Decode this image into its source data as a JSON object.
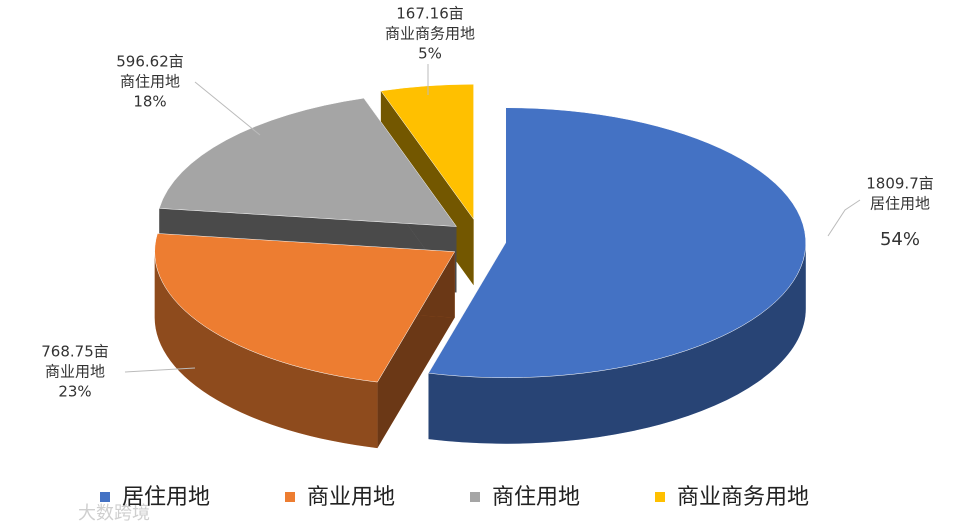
{
  "chart_data": {
    "type": "pie3d",
    "categories": [
      "居住用地",
      "商业用地",
      "商住用地",
      "商业商务用地"
    ],
    "values": [
      1809.7,
      768.75,
      596.62,
      167.16
    ],
    "value_labels": [
      "1809.7亩",
      "768.75亩",
      "596.62亩",
      "167.16亩"
    ],
    "percents": [
      54,
      23,
      18,
      5
    ],
    "percent_labels": [
      "54%",
      "23%",
      "18%",
      "5%"
    ],
    "colors": [
      "#4472c4",
      "#ed7d31",
      "#a5a5a5",
      "#ffc000"
    ],
    "legend": "bottom"
  },
  "watermark": "大数跨境"
}
